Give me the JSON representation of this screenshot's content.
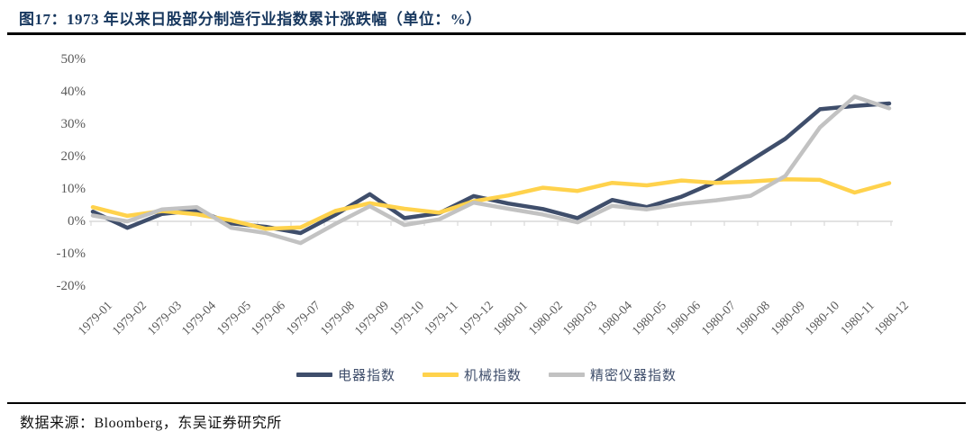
{
  "header": {
    "title": "图17：1973 年以来日股部分制造行业指数累计涨跌幅（单位：%）"
  },
  "footer": {
    "source": "数据来源：Bloomberg，东吴证券研究所"
  },
  "chart_data": {
    "type": "line",
    "title": "1973 年以来日股部分制造行业指数累计涨跌幅",
    "unit": "%",
    "categories": [
      "1979-01",
      "1979-02",
      "1979-03",
      "1979-04",
      "1979-05",
      "1979-06",
      "1979-07",
      "1979-08",
      "1979-09",
      "1979-10",
      "1979-11",
      "1979-12",
      "1980-01",
      "1980-02",
      "1980-03",
      "1980-04",
      "1980-05",
      "1980-06",
      "1980-07",
      "1980-08",
      "1980-09",
      "1980-10",
      "1980-11",
      "1980-12"
    ],
    "series": [
      {
        "name": "电器指数",
        "color": "#3F4E6B",
        "values": [
          3.0,
          -2.0,
          2.3,
          3.4,
          -0.6,
          -1.7,
          -3.6,
          2.0,
          8.4,
          1.0,
          2.5,
          7.8,
          5.5,
          3.8,
          1.0,
          6.6,
          4.4,
          7.6,
          12.2,
          18.8,
          25.5,
          34.6,
          35.6,
          36.4
        ]
      },
      {
        "name": "机械指数",
        "color": "#FFD24C",
        "values": [
          4.4,
          1.7,
          3.2,
          2.2,
          0.3,
          -2.3,
          -1.9,
          3.2,
          5.6,
          3.9,
          2.7,
          6.2,
          8.0,
          10.4,
          9.4,
          11.9,
          11.1,
          12.6,
          11.9,
          12.3,
          13.0,
          12.8,
          8.9,
          11.8
        ]
      },
      {
        "name": "精密仪器指数",
        "color": "#C2C2C2",
        "values": [
          1.8,
          0.0,
          3.7,
          4.4,
          -2.0,
          -3.6,
          -6.7,
          -0.8,
          4.7,
          -1.1,
          0.6,
          5.8,
          3.9,
          2.1,
          -0.3,
          4.8,
          3.7,
          5.4,
          6.5,
          7.9,
          14.0,
          29.0,
          38.5,
          34.9
        ]
      }
    ],
    "yticks": [
      50,
      40,
      30,
      20,
      10,
      0,
      -10,
      -20
    ],
    "ytick_suffix": "%",
    "ylim": [
      -20,
      50
    ],
    "grid": "zero-line-only",
    "legend_position": "bottom",
    "axis_color": "#D9D9D9"
  }
}
